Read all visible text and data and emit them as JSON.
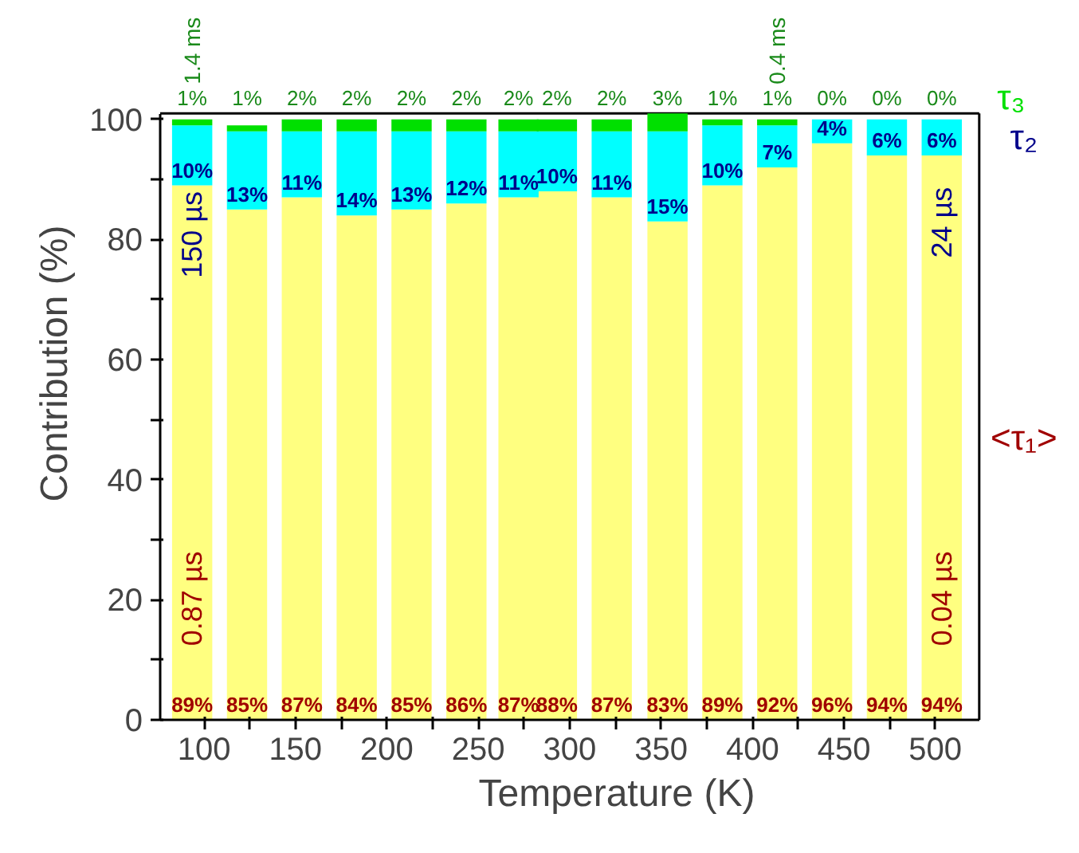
{
  "chart_data": {
    "type": "bar",
    "stacked": true,
    "xlabel": "Temperature (K)",
    "ylabel": "Contribution (%)",
    "x": [
      93.5,
      123.5,
      153.5,
      183.5,
      213.5,
      243.5,
      272,
      293,
      323,
      353.5,
      383.5,
      413.5,
      443.5,
      473.5,
      503.5
    ],
    "series": [
      {
        "name": "<τ₁>",
        "color": "#ffff80",
        "values": [
          89,
          85,
          87,
          84,
          85,
          86,
          87,
          88,
          87,
          83,
          89,
          92,
          96,
          94,
          94
        ],
        "value_labels": [
          "89%",
          "85%",
          "87%",
          "84%",
          "85%",
          "86%",
          "87%",
          "88%",
          "87%",
          "83%",
          "89%",
          "92%",
          "96%",
          "94%",
          "94%"
        ]
      },
      {
        "name": "τ₂",
        "color": "#00ffff",
        "values": [
          10,
          13,
          11,
          14,
          13,
          12,
          11,
          10,
          11,
          15,
          10,
          7,
          4,
          6,
          6
        ],
        "value_labels": [
          "10%",
          "13%",
          "11%",
          "14%",
          "13%",
          "12%",
          "11%",
          "10%",
          "11%",
          "15%",
          "10%",
          "7%",
          "4%",
          "6%",
          "6%"
        ]
      },
      {
        "name": "τ₃",
        "color": "#00e000",
        "values": [
          1,
          1,
          2,
          2,
          2,
          2,
          2,
          2,
          2,
          3,
          1,
          1,
          0,
          0,
          0
        ],
        "value_labels": [
          "1%",
          "1%",
          "2%",
          "2%",
          "2%",
          "2%",
          "2%",
          "2%",
          "2%",
          "3%",
          "1%",
          "1%",
          "0%",
          "0%",
          "0%"
        ]
      }
    ],
    "xlim": [
      76,
      524
    ],
    "ylim": [
      0,
      101
    ],
    "xticks": [
      100,
      {
        "value": 125,
        "label": null
      },
      150,
      {
        "value": 175,
        "label": null
      },
      200,
      {
        "value": 225,
        "label": null
      },
      250,
      {
        "value": 275,
        "label": null
      },
      300,
      {
        "value": 325,
        "label": null
      },
      350,
      {
        "value": 375,
        "label": null
      },
      400,
      {
        "value": 425,
        "label": null
      },
      450,
      {
        "value": 475,
        "label": null
      },
      500
    ],
    "yticks": [
      0,
      {
        "value": 10,
        "label": null
      },
      20,
      {
        "value": 30,
        "label": null
      },
      40,
      {
        "value": 50,
        "label": null
      },
      60,
      {
        "value": 70,
        "label": null
      },
      80,
      {
        "value": 90,
        "label": null
      },
      100
    ],
    "grid": false,
    "annotations": [
      "150 µs",
      "0.87 µs",
      "24 µs",
      "0.04 µs",
      {
        "text": "1.4 ms",
        "x": 93.5,
        "y": 100
      },
      {
        "text": "0.4 ms",
        "x": 413.5,
        "y": 100
      }
    ]
  }
}
